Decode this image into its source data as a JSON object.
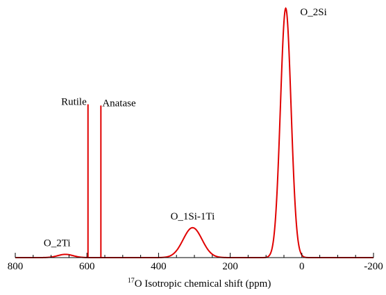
{
  "chart_data": {
    "type": "line",
    "title": "",
    "xlabel": "Isotropic chemical shift (ppm)",
    "xlabel_superscript": "17",
    "xlabel_prefix": "O",
    "ylabel": "",
    "xlim": [
      800,
      -200
    ],
    "x_reversed": true,
    "grid": false,
    "x_ticks": [
      800,
      600,
      400,
      200,
      0,
      -200
    ],
    "x_minor_step": 50,
    "color": "#e00000",
    "sticks": [
      {
        "label": "Rutile",
        "x": 597,
        "height": 0.615
      },
      {
        "label": "Anatase",
        "x": 561,
        "height": 0.61
      }
    ],
    "peaks": [
      {
        "label": "O_2Ti",
        "center": 660,
        "fwhm": 50,
        "height": 0.013
      },
      {
        "label": "O_1Si-1Ti",
        "center": 305,
        "fwhm": 62,
        "height": 0.12
      },
      {
        "label": "O_2Si",
        "center": 45,
        "fwhm": 35,
        "height": 1.0
      }
    ]
  }
}
